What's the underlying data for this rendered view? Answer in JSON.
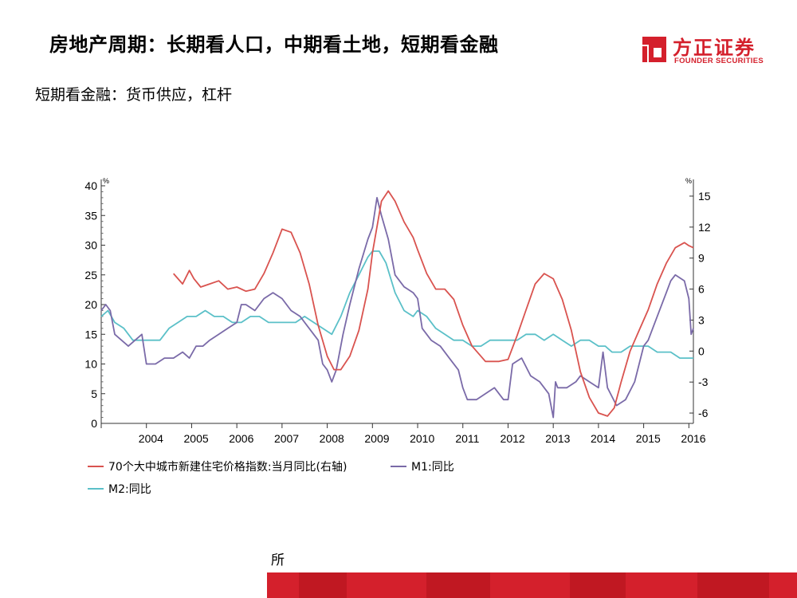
{
  "slide": {
    "title": "房地产周期：长期看人口，中期看土地，短期看金融",
    "subtitle": "短期看金融：货币供应，杠杆",
    "source_fragment": "所"
  },
  "logo": {
    "name_cn": "方正证券",
    "name_en": "FOUNDER SECURITIES",
    "color": "#d4202c"
  },
  "chart_data": {
    "type": "line",
    "left_axis": {
      "unit": "%",
      "range": [
        0,
        40
      ],
      "ticks": [
        0,
        5,
        10,
        15,
        20,
        25,
        30,
        35,
        40
      ]
    },
    "right_axis": {
      "unit": "%",
      "range": [
        -7,
        16
      ],
      "ticks": [
        -6,
        -3,
        0,
        3,
        6,
        9,
        12,
        15
      ]
    },
    "x_axis": {
      "range": [
        2003.0,
        2016.1
      ],
      "tick_labels": [
        "2004",
        "2005",
        "2006",
        "2007",
        "2008",
        "2009",
        "2010",
        "2011",
        "2012",
        "2013",
        "2014",
        "2015",
        "2016"
      ]
    },
    "legend_position": "bottom",
    "series": [
      {
        "name": "70个大中城市新建住宅价格指数:当月同比(右轴)",
        "axis": "right",
        "color": "#d9534f",
        "x": [
          2004.6,
          2004.8,
          2004.95,
          2005.05,
          2005.2,
          2005.4,
          2005.6,
          2005.8,
          2006.0,
          2006.2,
          2006.4,
          2006.6,
          2006.8,
          2007.0,
          2007.2,
          2007.4,
          2007.6,
          2007.8,
          2008.0,
          2008.15,
          2008.3,
          2008.5,
          2008.7,
          2008.9,
          2009.0,
          2009.2,
          2009.35,
          2009.5,
          2009.7,
          2009.9,
          2010.0,
          2010.2,
          2010.4,
          2010.6,
          2010.8,
          2011.0,
          2011.2,
          2011.5,
          2011.8,
          2012.0,
          2012.2,
          2012.4,
          2012.6,
          2012.8,
          2013.0,
          2013.2,
          2013.4,
          2013.6,
          2013.8,
          2014.0,
          2014.2,
          2014.35,
          2014.5,
          2014.7,
          2014.9,
          2015.1,
          2015.3,
          2015.5,
          2015.7,
          2015.9,
          2016.0,
          2016.1
        ],
        "values": [
          7.5,
          6.5,
          7.8,
          7.0,
          6.2,
          6.5,
          6.8,
          6.0,
          6.2,
          5.8,
          6.0,
          7.5,
          9.5,
          11.8,
          11.5,
          9.5,
          6.5,
          2.5,
          -0.5,
          -1.8,
          -1.8,
          -0.5,
          2.0,
          6.0,
          9.5,
          14.5,
          15.5,
          14.5,
          12.5,
          11.0,
          9.8,
          7.5,
          6.0,
          6.0,
          5.0,
          2.5,
          0.5,
          -1.0,
          -1.0,
          -0.8,
          1.5,
          4.0,
          6.5,
          7.5,
          7.0,
          5.0,
          2.0,
          -2.0,
          -4.5,
          -6.0,
          -6.3,
          -5.5,
          -3.0,
          0.0,
          2.0,
          4.0,
          6.5,
          8.5,
          10.0,
          10.5,
          10.2,
          10.0
        ]
      },
      {
        "name": "M1:同比",
        "axis": "left",
        "color": "#7a6aa8",
        "x": [
          2003.0,
          2003.1,
          2003.2,
          2003.3,
          2003.45,
          2003.6,
          2003.75,
          2003.9,
          2004.0,
          2004.05,
          2004.1,
          2004.2,
          2004.4,
          2004.6,
          2004.8,
          2004.95,
          2005.1,
          2005.25,
          2005.4,
          2005.6,
          2005.8,
          2006.0,
          2006.1,
          2006.2,
          2006.4,
          2006.6,
          2006.8,
          2007.0,
          2007.2,
          2007.4,
          2007.6,
          2007.8,
          2007.9,
          2008.0,
          2008.1,
          2008.2,
          2008.35,
          2008.5,
          2008.7,
          2008.9,
          2009.0,
          2009.1,
          2009.2,
          2009.35,
          2009.5,
          2009.7,
          2009.9,
          2010.0,
          2010.1,
          2010.3,
          2010.5,
          2010.7,
          2010.9,
          2011.0,
          2011.1,
          2011.3,
          2011.5,
          2011.7,
          2011.9,
          2012.0,
          2012.1,
          2012.3,
          2012.5,
          2012.7,
          2012.9,
          2013.0,
          2013.05,
          2013.1,
          2013.3,
          2013.5,
          2013.6,
          2013.8,
          2014.0,
          2014.1,
          2014.2,
          2014.4,
          2014.6,
          2014.8,
          2015.0,
          2015.1,
          2015.3,
          2015.5,
          2015.6,
          2015.7,
          2015.9,
          2016.0,
          2016.05,
          2016.1
        ],
        "values": [
          19,
          20,
          19,
          15,
          14,
          13,
          14,
          15,
          10,
          10,
          10,
          10,
          11,
          11,
          12,
          11,
          13,
          13,
          14,
          15,
          16,
          17,
          20,
          20,
          19,
          21,
          22,
          21,
          19,
          18,
          16,
          14,
          10,
          9,
          7,
          9,
          15,
          20,
          26,
          31,
          33,
          38,
          35,
          31,
          25,
          23,
          22,
          21,
          16,
          14,
          13,
          11,
          9,
          6,
          4,
          4,
          5,
          6,
          4,
          4,
          10,
          11,
          8,
          7,
          5,
          1,
          7,
          6,
          6,
          7,
          8,
          7,
          6,
          12,
          6,
          3,
          4,
          7,
          13,
          14,
          18,
          22,
          24,
          25,
          24,
          21,
          15,
          16
        ]
      },
      {
        "name": "M2:同比",
        "axis": "left",
        "color": "#5bc0c8",
        "x": [
          2003.0,
          2003.15,
          2003.3,
          2003.5,
          2003.7,
          2003.9,
          2004.1,
          2004.3,
          2004.5,
          2004.7,
          2004.9,
          2005.1,
          2005.3,
          2005.5,
          2005.7,
          2005.9,
          2006.1,
          2006.3,
          2006.5,
          2006.7,
          2006.9,
          2007.1,
          2007.3,
          2007.5,
          2007.7,
          2007.9,
          2008.1,
          2008.3,
          2008.5,
          2008.7,
          2008.9,
          2009.0,
          2009.15,
          2009.3,
          2009.5,
          2009.7,
          2009.9,
          2010.0,
          2010.2,
          2010.4,
          2010.6,
          2010.8,
          2011.0,
          2011.2,
          2011.4,
          2011.6,
          2011.8,
          2012.0,
          2012.2,
          2012.4,
          2012.6,
          2012.8,
          2013.0,
          2013.2,
          2013.4,
          2013.6,
          2013.8,
          2014.0,
          2014.15,
          2014.3,
          2014.5,
          2014.7,
          2014.9,
          2015.1,
          2015.3,
          2015.5,
          2015.6,
          2015.8,
          2016.0,
          2016.1
        ],
        "values": [
          18,
          19,
          17,
          16,
          14,
          14,
          14,
          14,
          16,
          17,
          18,
          18,
          19,
          18,
          18,
          17,
          17,
          18,
          18,
          17,
          17,
          17,
          17,
          18,
          17,
          16,
          15,
          18,
          22,
          25,
          28,
          29,
          29,
          27,
          22,
          19,
          18,
          19,
          18,
          16,
          15,
          14,
          14,
          13,
          13,
          14,
          14,
          14,
          14,
          15,
          15,
          14,
          15,
          14,
          13,
          14,
          14,
          13,
          13,
          12,
          12,
          13,
          13,
          13,
          12,
          12,
          12,
          11,
          11,
          11
        ]
      }
    ]
  }
}
